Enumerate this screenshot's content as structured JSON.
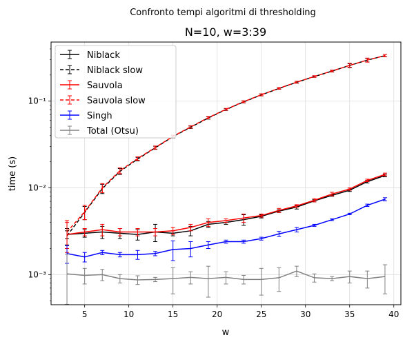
{
  "chart_data": {
    "type": "line",
    "suptitle": "Confronto tempi algoritmi di thresholding",
    "title": "N=10, w=3:39",
    "xlabel": "w",
    "ylabel": "time (s)",
    "yscale": "log",
    "xlim": [
      1.2,
      40.8
    ],
    "ylim": [
      0.00045,
      0.48
    ],
    "grid": true,
    "legend_position": "upper left",
    "x_ticks": [
      5,
      10,
      15,
      20,
      25,
      30,
      35,
      40
    ],
    "y_ticks": [
      {
        "value": 0.001,
        "label": "10⁻³"
      },
      {
        "value": 0.01,
        "label": "10⁻²"
      },
      {
        "value": 0.1,
        "label": "10⁻¹"
      }
    ],
    "x": [
      3,
      5,
      7,
      9,
      11,
      13,
      15,
      17,
      19,
      21,
      23,
      25,
      27,
      29,
      31,
      33,
      35,
      37,
      39
    ],
    "series": [
      {
        "name": "Niblack slow",
        "color": "#000000",
        "dashed": true,
        "values": [
          0.0028,
          0.0052,
          0.0098,
          0.0155,
          0.0215,
          0.029,
          0.039,
          0.05,
          0.064,
          0.08,
          0.098,
          0.118,
          0.14,
          0.165,
          0.192,
          0.222,
          0.258,
          0.297,
          0.335
        ],
        "errors": [
          0.0006,
          0.0009,
          0.0012,
          0.0012,
          0.001,
          0.0012,
          0.0014,
          0.0016,
          0.002,
          0.002,
          0.0025,
          0.003,
          0.003,
          0.004,
          0.004,
          0.005,
          0.012,
          0.014,
          0.01
        ]
      },
      {
        "name": "Sauvola slow",
        "color": "#ff0000",
        "dashed": true,
        "values": [
          0.0031,
          0.0053,
          0.01,
          0.0158,
          0.0218,
          0.0292,
          0.0392,
          0.0505,
          0.0645,
          0.0805,
          0.0985,
          0.1185,
          0.1405,
          0.1655,
          0.1925,
          0.2225,
          0.2585,
          0.2975,
          0.3355
        ],
        "errors": [
          0.0011,
          0.001,
          0.0012,
          0.0012,
          0.001,
          0.0012,
          0.0014,
          0.0016,
          0.002,
          0.002,
          0.0025,
          0.003,
          0.003,
          0.004,
          0.004,
          0.005,
          0.015,
          0.016,
          0.01
        ]
      },
      {
        "name": "Niblack",
        "color": "#000000",
        "dashed": false,
        "values": [
          0.0029,
          0.003,
          0.0031,
          0.003,
          0.0029,
          0.0031,
          0.003,
          0.0032,
          0.0038,
          0.004,
          0.0043,
          0.0047,
          0.0054,
          0.006,
          0.0071,
          0.0082,
          0.0094,
          0.0118,
          0.0139
        ],
        "errors": [
          0.0003,
          0.0003,
          0.0005,
          0.0004,
          0.0004,
          0.0007,
          0.0002,
          0.0004,
          0.0003,
          0.0002,
          0.0006,
          0.0002,
          0.0002,
          0.0003,
          0.0002,
          0.0002,
          0.0003,
          0.0004,
          0.0005
        ]
      },
      {
        "name": "Sauvola",
        "color": "#ff0000",
        "dashed": false,
        "values": [
          0.0029,
          0.0031,
          0.0033,
          0.0031,
          0.0031,
          0.0031,
          0.0032,
          0.0035,
          0.004,
          0.0042,
          0.0045,
          0.0048,
          0.0055,
          0.0062,
          0.0072,
          0.0085,
          0.0097,
          0.0122,
          0.0143
        ],
        "errors": [
          0.0011,
          0.0003,
          0.0005,
          0.0003,
          0.0003,
          0.0003,
          0.0003,
          0.0003,
          0.0004,
          0.0002,
          0.0005,
          0.0002,
          0.0003,
          0.0002,
          0.0003,
          0.0004,
          0.0003,
          0.0004,
          0.0005
        ]
      },
      {
        "name": "Singh",
        "color": "#0000ff",
        "dashed": false,
        "values": [
          0.00175,
          0.0016,
          0.0018,
          0.0017,
          0.0017,
          0.00175,
          0.00195,
          0.002,
          0.0022,
          0.0024,
          0.0024,
          0.0026,
          0.00295,
          0.0033,
          0.0037,
          0.0043,
          0.005,
          0.0063,
          0.0074
        ],
        "errors": [
          0.0004,
          0.0002,
          0.0001,
          0.0001,
          0.0002,
          0.0001,
          0.0005,
          0.0004,
          0.0002,
          0.0001,
          0.0001,
          0.0001,
          0.0002,
          0.0002,
          0.0001,
          0.0001,
          0.0001,
          0.0002,
          0.0003
        ]
      },
      {
        "name": "Total (Otsu)",
        "color": "#808080",
        "dashed": false,
        "values": [
          0.00102,
          0.00098,
          0.001,
          0.0009,
          0.00087,
          0.00088,
          0.0009,
          0.00093,
          0.0009,
          0.00093,
          0.00088,
          0.00088,
          0.00092,
          0.0011,
          0.00092,
          0.0009,
          0.00095,
          0.0009,
          0.00095
        ],
        "errors": [
          0.0007,
          0.0002,
          0.00015,
          0.0001,
          0.0001,
          5e-05,
          0.0003,
          0.00015,
          0.00035,
          0.00015,
          0.0001,
          0.0003,
          0.00028,
          0.00015,
          0.0001,
          5e-05,
          0.00015,
          0.0002,
          0.00035
        ]
      }
    ],
    "legend_order": [
      "Niblack",
      "Niblack slow",
      "Sauvola",
      "Sauvola slow",
      "Singh",
      "Total (Otsu)"
    ]
  }
}
